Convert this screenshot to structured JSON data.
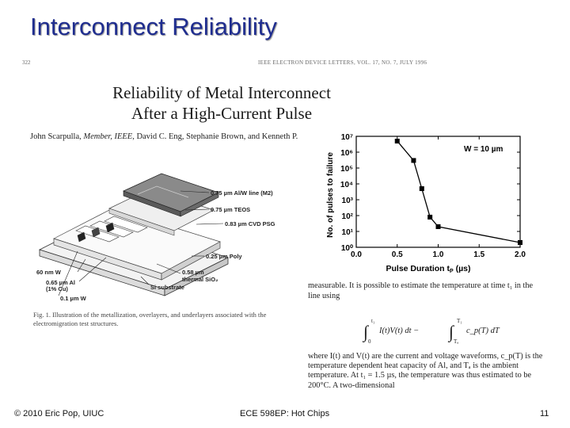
{
  "slide": {
    "title": "Interconnect Reliability",
    "footer_left": "© 2010 Eric Pop, UIUC",
    "footer_center": "ECE 598EP: Hot Chips",
    "page_number": "11"
  },
  "paper": {
    "page_number": "322",
    "journal_line": "IEEE ELECTRON DEVICE LETTERS, VOL. 17, NO. 7, JULY 1996",
    "title_line1": "Reliability of Metal Interconnect",
    "title_line2": "After a High-Current Pulse",
    "authors_before": "John Scarpulla, ",
    "authors_member": "Member, IEEE",
    "authors_after": ", David C. Eng, Stephanie Brown, and Kenneth P.",
    "caption": "Fig. 1.  Illustration of the metallization, overlayers, and underlayers associated with the electromigration test structures."
  },
  "diagram": {
    "labels": {
      "m2": "0.75 µm Al/W line (M2)",
      "teos": "0.75 µm TEOS",
      "psg": "0.83 µm CVD PSG",
      "poly": "0.25 µm Poly",
      "w60": "60 nm W",
      "al": "0.65 µm Al",
      "cu": "(1% Cu)",
      "sio2_thk": "0.58 µm",
      "sio2": "thermal SiO₂",
      "si": "Si substrate",
      "w01": "0.1 µm W"
    }
  },
  "chart_data": {
    "type": "line",
    "xlabel": "Pulse Duration",
    "xlabel_symbol": "t",
    "xlabel_sub": "P",
    "xlabel_unit": "(µs)",
    "ylabel": "No. of pulses to failure",
    "annotation": "W = 10 µm",
    "xlim": [
      0.0,
      2.0
    ],
    "ylim_log10": [
      0,
      7
    ],
    "y_scale": "log",
    "x_ticks": [
      "0.0",
      "0.5",
      "1.0",
      "1.5",
      "2.0"
    ],
    "y_ticks": [
      "10⁰",
      "10¹",
      "10²",
      "10³",
      "10⁴",
      "10⁵",
      "10⁶",
      "10⁷"
    ],
    "series": [
      {
        "x": [
          0.5,
          0.7,
          0.8,
          0.9,
          1.0,
          2.0
        ],
        "y": [
          5000000,
          300000,
          5000,
          80,
          20,
          2
        ],
        "marker": "square",
        "color": "#000000"
      }
    ]
  },
  "body": {
    "para1": "measurable. It is possible to estimate the temperature at time t₁ in the line using",
    "eq_lower1": "0",
    "eq_upper1": "t₁",
    "eq_integrand": "I(t)V(t) dt − ",
    "eq_lower2": "Tₐ",
    "eq_upper2": "T₁",
    "eq_integrand2": "c_p(T) dT",
    "para2": "where I(t) and V(t) are the current and voltage waveforms, c_p(T) is the temperature dependent heat capacity of Al, and Tₐ is the ambient temperature. At t₁ = 1.5 µs, the temperature was thus estimated to be 200°C. A two-dimensional"
  }
}
